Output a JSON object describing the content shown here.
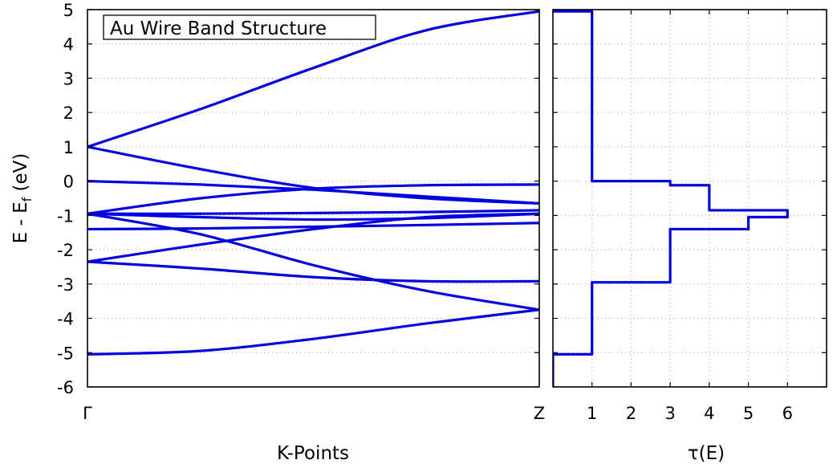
{
  "chart_data": [
    {
      "type": "line",
      "title": "Au Wire Band Structure",
      "xlabel": "K-Points",
      "ylabel_main": "E - E",
      "ylabel_sub": "f",
      "ylabel_unit": "(eV)",
      "xlim": [
        0,
        1
      ],
      "ylim": [
        -6,
        5
      ],
      "x_ticks": [
        {
          "value": 0,
          "label": "Γ"
        },
        {
          "value": 1,
          "label": "Z"
        }
      ],
      "y_ticks": [
        -6,
        -5,
        -4,
        -3,
        -2,
        -1,
        0,
        1,
        2,
        3,
        4,
        5
      ],
      "grid": true,
      "series": [
        {
          "x": [
            0,
            0.25,
            0.5,
            0.75,
            1.0
          ],
          "y": [
            -5.05,
            -4.95,
            -4.6,
            -4.15,
            -3.75
          ]
        },
        {
          "x": [
            0,
            0.25,
            0.5,
            0.75,
            1.0
          ],
          "y": [
            -2.35,
            -2.55,
            -2.8,
            -2.92,
            -2.92
          ]
        },
        {
          "x": [
            0,
            0.25,
            0.5,
            0.75,
            1.0
          ],
          "y": [
            -2.35,
            -1.85,
            -1.4,
            -1.05,
            -0.95
          ]
        },
        {
          "x": [
            0,
            0.25,
            0.5,
            0.75,
            1.0
          ],
          "y": [
            -1.4,
            -1.38,
            -1.33,
            -1.28,
            -1.22
          ]
        },
        {
          "x": [
            0,
            0.25,
            0.5,
            0.75,
            1.0
          ],
          "y": [
            -0.95,
            -1.55,
            -2.45,
            -3.2,
            -3.75
          ]
        },
        {
          "x": [
            0,
            0.25,
            0.5,
            0.75,
            1.0
          ],
          "y": [
            -0.95,
            -0.95,
            -0.93,
            -0.9,
            -0.85
          ]
        },
        {
          "x": [
            0,
            0.25,
            0.5,
            0.75,
            1.0
          ],
          "y": [
            -0.95,
            -0.5,
            -0.22,
            -0.12,
            -0.1
          ]
        },
        {
          "x": [
            0,
            0.25,
            0.5,
            0.75,
            1.0
          ],
          "y": [
            -0.95,
            -1.05,
            -1.12,
            -1.08,
            -0.95
          ]
        },
        {
          "x": [
            0,
            0.25,
            0.5,
            0.75,
            1.0
          ],
          "y": [
            0.0,
            -0.1,
            -0.25,
            -0.45,
            -0.65
          ]
        },
        {
          "x": [
            0,
            0.25,
            0.5,
            0.75,
            1.0
          ],
          "y": [
            1.0,
            0.35,
            -0.2,
            -0.5,
            -0.65
          ]
        },
        {
          "x": [
            0,
            0.25,
            0.5,
            0.75,
            1.0
          ],
          "y": [
            1.0,
            2.1,
            3.3,
            4.4,
            4.95
          ]
        }
      ]
    },
    {
      "type": "line",
      "xlabel": "τ(E)",
      "xlim": [
        0,
        7
      ],
      "ylim": [
        -6,
        5
      ],
      "x_ticks": [
        1,
        2,
        3,
        4,
        5,
        6
      ],
      "grid": true,
      "step": {
        "energies": [
          -6,
          -5.05,
          -5.05,
          -2.95,
          -2.95,
          -1.4,
          -1.4,
          -1.05,
          -1.05,
          -0.85,
          -0.85,
          -0.12,
          -0.12,
          0.0,
          0.0,
          4.95,
          4.95
        ],
        "tau": [
          0,
          0,
          1,
          1,
          3,
          3,
          5,
          5,
          6,
          6,
          4,
          4,
          3,
          3,
          1,
          1,
          0
        ]
      }
    }
  ]
}
